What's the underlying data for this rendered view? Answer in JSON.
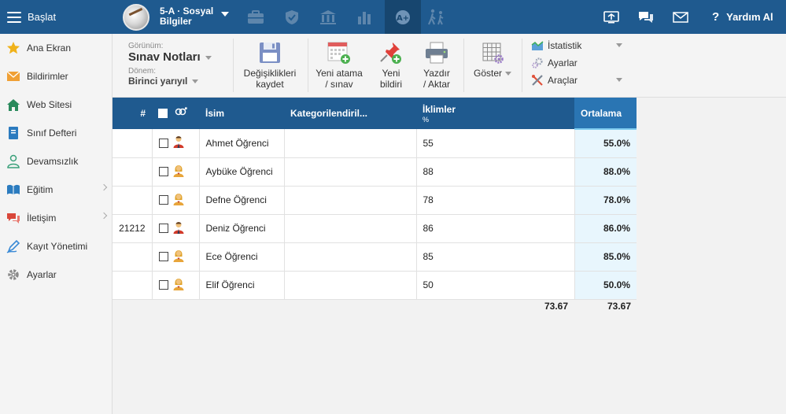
{
  "topbar": {
    "start_label": "Başlat",
    "class_name": "5-A · Sosyal Bilgiler",
    "help_label": "Yardım Al",
    "tabs": [
      {
        "name": "briefcase-icon"
      },
      {
        "name": "shield-icon"
      },
      {
        "name": "institution-icon"
      },
      {
        "name": "bar-chart-icon"
      },
      {
        "name": "grades-icon",
        "active": true
      },
      {
        "name": "walking-icon"
      }
    ]
  },
  "sidebar": {
    "items": [
      {
        "label": "Ana Ekran",
        "icon": "star-icon"
      },
      {
        "label": "Bildirimler",
        "icon": "envelope-icon"
      },
      {
        "label": "Web Sitesi",
        "icon": "home-icon"
      },
      {
        "label": "Sınıf Defteri",
        "icon": "notebook-icon"
      },
      {
        "label": "Devamsızlık",
        "icon": "person-icon"
      },
      {
        "label": "Eğitim",
        "icon": "book-icon"
      },
      {
        "label": "İletişim",
        "icon": "chat-icon"
      },
      {
        "label": "Kayıt Yönetimi",
        "icon": "pen-icon"
      },
      {
        "label": "Ayarlar",
        "icon": "gear-icon"
      }
    ]
  },
  "toolbar": {
    "view_label": "Görünüm:",
    "view_value": "Sınav Notları",
    "term_label": "Dönem:",
    "term_value": "Birinci yarıyıl",
    "save_line1": "Değişiklikleri",
    "save_line2": "kaydet",
    "new_assign_line1": "Yeni atama",
    "new_assign_line2": "/ sınav",
    "new_report_line1": "Yeni",
    "new_report_line2": "bildiri",
    "print_line1": "Yazdır",
    "print_line2": "/ Aktar",
    "show_label": "Göster",
    "stats_label": "İstatistik",
    "settings_label": "Ayarlar",
    "tools_label": "Araçlar"
  },
  "table": {
    "headers": {
      "number": "#",
      "name": "İsim",
      "category": "Kategorilendiril...",
      "climates": "İklimler",
      "climates_unit": "%",
      "average": "Ortalama"
    },
    "rows": [
      {
        "number": "",
        "name": "Ahmet Öğrenci",
        "gender": "male",
        "category": "",
        "climates": "55",
        "average": "55.0%"
      },
      {
        "number": "",
        "name": "Aybüke Öğrenci",
        "gender": "female",
        "category": "",
        "climates": "88",
        "average": "88.0%"
      },
      {
        "number": "",
        "name": "Defne Öğrenci",
        "gender": "female",
        "category": "",
        "climates": "78",
        "average": "78.0%"
      },
      {
        "number": "21212",
        "name": "Deniz Öğrenci",
        "gender": "male",
        "category": "",
        "climates": "86",
        "average": "86.0%"
      },
      {
        "number": "",
        "name": "Ece Öğrenci",
        "gender": "female",
        "category": "",
        "climates": "85",
        "average": "85.0%"
      },
      {
        "number": "",
        "name": "Elif Öğrenci",
        "gender": "female",
        "category": "",
        "climates": "50",
        "average": "50.0%"
      }
    ],
    "footer": {
      "climates_avg": "73.67",
      "overall_avg": "73.67"
    }
  }
}
